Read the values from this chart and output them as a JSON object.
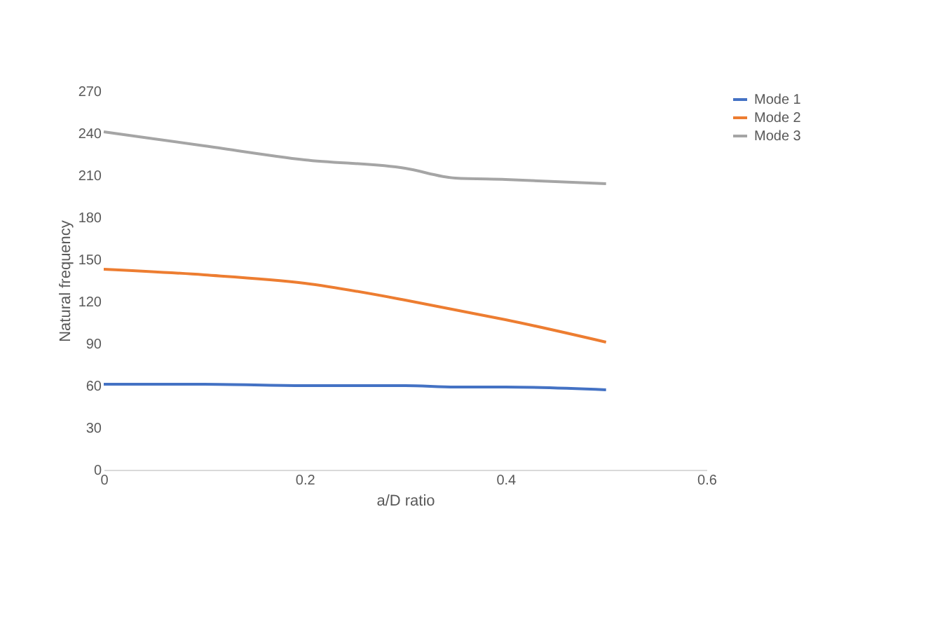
{
  "chart_data": {
    "type": "line",
    "xlabel": "a/D ratio",
    "ylabel": "Natural frequency",
    "x": [
      0,
      0.1,
      0.2,
      0.3,
      0.35,
      0.4,
      0.5
    ],
    "series": [
      {
        "name": "Mode 1",
        "color": "#4472c4",
        "values": [
          61,
          61,
          60,
          60,
          59,
          59,
          57
        ]
      },
      {
        "name": "Mode 2",
        "color": "#ed7d31",
        "values": [
          143,
          139,
          133,
          121,
          114,
          107,
          91
        ]
      },
      {
        "name": "Mode 3",
        "color": "#a5a5a5",
        "values": [
          241,
          231,
          221,
          215,
          208,
          207,
          204
        ]
      }
    ],
    "xlim": [
      0,
      0.6
    ],
    "xticks": [
      0,
      0.2,
      0.4,
      0.6
    ],
    "ylim": [
      0,
      270
    ],
    "yticks": [
      0,
      30,
      60,
      90,
      120,
      150,
      180,
      210,
      240,
      270
    ],
    "grid": false,
    "legend": "right",
    "marker": "none",
    "line_style": "solid"
  }
}
